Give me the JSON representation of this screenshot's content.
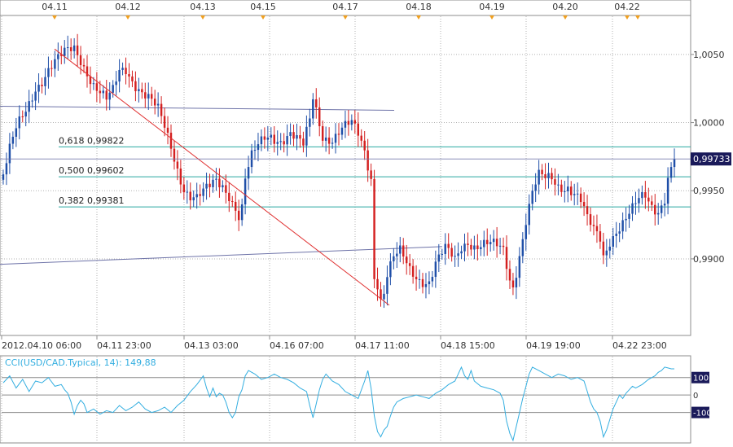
{
  "colors": {
    "background": "#ffffff",
    "panel_border": "#8c8c8c",
    "grid": "#b0b0b0",
    "up_candle": "#1f4fa8",
    "down_candle": "#d42020",
    "fib_line": "#2aa9a0",
    "trend_line": "#e03030",
    "channel_line": "#6e73a8",
    "cci_line": "#33aee0",
    "event_marker": "#f0a020",
    "price_tag": "#1a1a5a"
  },
  "top_axis": {
    "labels": [
      "04.11",
      "04.12",
      "04.13",
      "04.15",
      "04.17",
      "04.18",
      "04.19",
      "04.20",
      "04.22"
    ]
  },
  "chart_data": [
    {
      "type": "candlestick",
      "x_labels": [
        "2012.04.10 06:00",
        "04.11 23:00",
        "04.13 03:00",
        "04.16 07:00",
        "04.17 11:00",
        "04.18 15:00",
        "04.19 19:00",
        "04.22 23:00"
      ],
      "y_ticks": [
        "1,0050",
        "1,0000",
        "0,9950",
        "0,9900"
      ],
      "ylim": [
        0.9845,
        1.0078
      ],
      "last_price": "0,99733",
      "fib_levels": [
        {
          "label": "0,618 0,99822",
          "value": 0.99822
        },
        {
          "label": "0,500 0,99602",
          "value": 0.99602
        },
        {
          "label": "0,382 0,99381",
          "value": 0.99381
        }
      ],
      "close_path": [
        [
          0,
          0.9962
        ],
        [
          2,
          0.9978
        ],
        [
          4,
          0.9992
        ],
        [
          7,
          1.0008
        ],
        [
          10,
          1.0028
        ],
        [
          14,
          1.004
        ],
        [
          18,
          1.0046
        ],
        [
          20,
          1.005
        ],
        [
          22,
          1.0054
        ],
        [
          24,
          1.0048
        ],
        [
          26,
          1.004
        ],
        [
          28,
          1.003
        ],
        [
          30,
          1.0022
        ],
        [
          32,
          1.0014
        ],
        [
          34,
          1.002
        ],
        [
          36,
          1.0036
        ],
        [
          38,
          1.004
        ],
        [
          40,
          1.0034
        ],
        [
          42,
          1.0028
        ],
        [
          45,
          1.0018
        ],
        [
          48,
          1.0006
        ],
        [
          50,
          0.9994
        ],
        [
          52,
          0.9982
        ],
        [
          54,
          0.9968
        ],
        [
          56,
          0.9955
        ],
        [
          58,
          0.9948
        ],
        [
          60,
          0.9944
        ],
        [
          62,
          0.9946
        ],
        [
          64,
          0.995
        ],
        [
          66,
          0.9956
        ],
        [
          68,
          0.9955
        ],
        [
          70,
          0.995
        ],
        [
          72,
          0.994
        ],
        [
          73,
          0.9933
        ],
        [
          74,
          0.9938
        ],
        [
          75,
          0.9958
        ],
        [
          77,
          0.9972
        ],
        [
          79,
          0.998
        ],
        [
          81,
          0.9988
        ],
        [
          83,
          0.9992
        ],
        [
          86,
          0.999
        ],
        [
          89,
          0.9992
        ],
        [
          91,
          0.9985
        ],
        [
          93,
          0.998
        ],
        [
          95,
          1.0
        ],
        [
          96,
          1.0018
        ],
        [
          97,
          1.001
        ],
        [
          99,
          0.9993
        ],
        [
          102,
          0.999
        ],
        [
          105,
          0.9994
        ],
        [
          108,
          0.9996
        ],
        [
          110,
          0.999
        ],
        [
          112,
          0.998
        ],
        [
          114,
          0.9962
        ],
        [
          115,
          0.989
        ],
        [
          116,
          0.9885
        ],
        [
          117,
          0.9872
        ],
        [
          118,
          0.9876
        ],
        [
          119,
          0.9888
        ],
        [
          121,
          0.9898
        ],
        [
          123,
          0.9902
        ],
        [
          126,
          0.9892
        ],
        [
          129,
          0.9888
        ],
        [
          132,
          0.9885
        ],
        [
          134,
          0.9896
        ],
        [
          137,
          0.9904
        ],
        [
          140,
          0.9898
        ],
        [
          142,
          0.991
        ],
        [
          144,
          0.9916
        ],
        [
          146,
          0.9912
        ],
        [
          149,
          0.991
        ],
        [
          152,
          0.9907
        ],
        [
          155,
          0.9905
        ],
        [
          157,
          0.9886
        ],
        [
          158,
          0.9882
        ],
        [
          160,
          0.9906
        ],
        [
          162,
          0.993
        ],
        [
          164,
          0.9948
        ],
        [
          166,
          0.9958
        ],
        [
          168,
          0.9956
        ],
        [
          170,
          0.9958
        ],
        [
          172,
          0.9955
        ],
        [
          175,
          0.9956
        ],
        [
          177,
          0.995
        ],
        [
          179,
          0.9942
        ],
        [
          181,
          0.9926
        ],
        [
          183,
          0.9918
        ],
        [
          185,
          0.9914
        ],
        [
          186,
          0.9902
        ],
        [
          188,
          0.9916
        ],
        [
          190,
          0.9924
        ],
        [
          193,
          0.993
        ],
        [
          195,
          0.9934
        ],
        [
          197,
          0.994
        ],
        [
          199,
          0.9944
        ],
        [
          201,
          0.9939
        ],
        [
          203,
          0.9938
        ],
        [
          205,
          0.9948
        ],
        [
          206,
          0.9962
        ],
        [
          207,
          0.9968
        ],
        [
          208,
          0.9973
        ]
      ]
    },
    {
      "type": "line",
      "title": "CCI(USD/CAD.Typical, 14): 149,88",
      "y_ticks": [
        "100",
        "0",
        "-100"
      ],
      "ylim": [
        -270,
        220
      ],
      "series": [
        {
          "name": "CCI(USD/CAD.Typical, 14)",
          "values": [
            [
              0,
              70
            ],
            [
              2,
              110
            ],
            [
              4,
              40
            ],
            [
              6,
              90
            ],
            [
              8,
              20
            ],
            [
              10,
              80
            ],
            [
              12,
              70
            ],
            [
              14,
              100
            ],
            [
              16,
              50
            ],
            [
              18,
              60
            ],
            [
              19,
              30
            ],
            [
              20,
              10
            ],
            [
              21,
              -40
            ],
            [
              22,
              -110
            ],
            [
              23,
              -60
            ],
            [
              24,
              -30
            ],
            [
              25,
              -50
            ],
            [
              26,
              -100
            ],
            [
              28,
              -80
            ],
            [
              30,
              -110
            ],
            [
              32,
              -90
            ],
            [
              34,
              -100
            ],
            [
              36,
              -60
            ],
            [
              38,
              -90
            ],
            [
              40,
              -70
            ],
            [
              42,
              -40
            ],
            [
              44,
              -80
            ],
            [
              46,
              -100
            ],
            [
              48,
              -90
            ],
            [
              50,
              -70
            ],
            [
              52,
              -100
            ],
            [
              54,
              -60
            ],
            [
              56,
              -30
            ],
            [
              58,
              20
            ],
            [
              60,
              60
            ],
            [
              62,
              110
            ],
            [
              63,
              40
            ],
            [
              64,
              -10
            ],
            [
              65,
              40
            ],
            [
              66,
              -10
            ],
            [
              67,
              10
            ],
            [
              68,
              0
            ],
            [
              69,
              -40
            ],
            [
              70,
              -100
            ],
            [
              71,
              -130
            ],
            [
              72,
              -100
            ],
            [
              73,
              -10
            ],
            [
              74,
              30
            ],
            [
              75,
              110
            ],
            [
              76,
              140
            ],
            [
              78,
              120
            ],
            [
              80,
              90
            ],
            [
              82,
              100
            ],
            [
              84,
              120
            ],
            [
              86,
              100
            ],
            [
              88,
              90
            ],
            [
              90,
              70
            ],
            [
              92,
              40
            ],
            [
              94,
              20
            ],
            [
              95,
              -60
            ],
            [
              96,
              -130
            ],
            [
              97,
              -50
            ],
            [
              98,
              30
            ],
            [
              99,
              90
            ],
            [
              100,
              120
            ],
            [
              102,
              80
            ],
            [
              104,
              60
            ],
            [
              106,
              20
            ],
            [
              108,
              0
            ],
            [
              110,
              -20
            ],
            [
              112,
              80
            ],
            [
              113,
              140
            ],
            [
              114,
              40
            ],
            [
              115,
              -120
            ],
            [
              116,
              -210
            ],
            [
              117,
              -240
            ],
            [
              118,
              -200
            ],
            [
              119,
              -180
            ],
            [
              120,
              -120
            ],
            [
              121,
              -70
            ],
            [
              122,
              -40
            ],
            [
              124,
              -20
            ],
            [
              126,
              -10
            ],
            [
              128,
              0
            ],
            [
              130,
              -10
            ],
            [
              132,
              -20
            ],
            [
              134,
              10
            ],
            [
              136,
              30
            ],
            [
              138,
              60
            ],
            [
              140,
              80
            ],
            [
              141,
              120
            ],
            [
              142,
              160
            ],
            [
              143,
              110
            ],
            [
              144,
              90
            ],
            [
              145,
              140
            ],
            [
              146,
              80
            ],
            [
              148,
              50
            ],
            [
              150,
              40
            ],
            [
              152,
              30
            ],
            [
              154,
              10
            ],
            [
              155,
              -30
            ],
            [
              156,
              -150
            ],
            [
              157,
              -220
            ],
            [
              158,
              -260
            ],
            [
              159,
              -180
            ],
            [
              160,
              -100
            ],
            [
              161,
              -20
            ],
            [
              162,
              50
            ],
            [
              163,
              120
            ],
            [
              164,
              160
            ],
            [
              166,
              140
            ],
            [
              168,
              120
            ],
            [
              170,
              100
            ],
            [
              172,
              120
            ],
            [
              174,
              110
            ],
            [
              176,
              90
            ],
            [
              178,
              100
            ],
            [
              180,
              80
            ],
            [
              181,
              20
            ],
            [
              182,
              -40
            ],
            [
              183,
              -80
            ],
            [
              184,
              -100
            ],
            [
              185,
              -150
            ],
            [
              186,
              -240
            ],
            [
              187,
              -200
            ],
            [
              188,
              -140
            ],
            [
              189,
              -80
            ],
            [
              190,
              -40
            ],
            [
              191,
              0
            ],
            [
              192,
              -20
            ],
            [
              193,
              10
            ],
            [
              194,
              30
            ],
            [
              195,
              50
            ],
            [
              196,
              40
            ],
            [
              198,
              60
            ],
            [
              200,
              90
            ],
            [
              202,
              110
            ],
            [
              203,
              130
            ],
            [
              204,
              140
            ],
            [
              205,
              160
            ],
            [
              206,
              155
            ],
            [
              207,
              150
            ],
            [
              208,
              150
            ]
          ]
        }
      ]
    }
  ]
}
